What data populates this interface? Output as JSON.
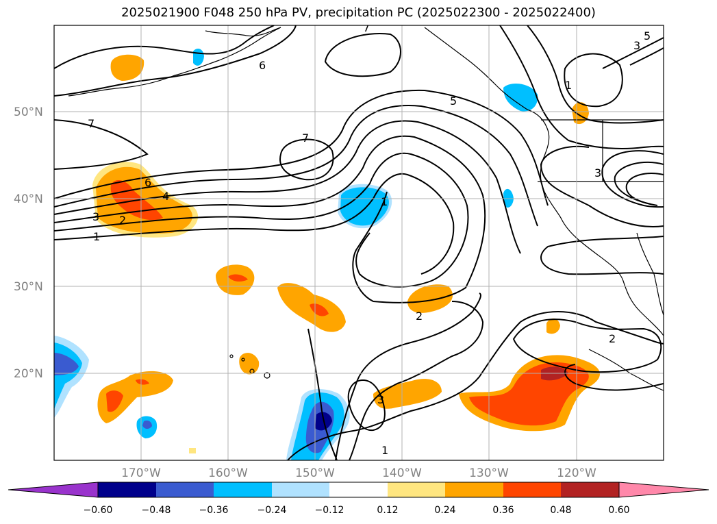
{
  "title": "2025021900 F048 250 hPa PV, precipitation PC (2025022300 - 2025022400)",
  "lat_labels": [
    "50°N",
    "40°N",
    "30°N",
    "20°N"
  ],
  "lon_labels": [
    "170°W",
    "160°W",
    "150°W",
    "140°W",
    "130°W",
    "120°W"
  ],
  "contour_labels": [
    "7",
    "6",
    "5",
    "7",
    "7",
    "6",
    "4",
    "3",
    "2",
    "1",
    "1",
    "2",
    "2",
    "3",
    "1",
    "3",
    "3",
    "5",
    "1"
  ],
  "colorbar": {
    "ticks": [
      "−0.60",
      "−0.48",
      "−0.36",
      "−0.24",
      "−0.12",
      "0.12",
      "0.24",
      "0.36",
      "0.48",
      "0.60"
    ],
    "colors": [
      "#9933cc",
      "#00008b",
      "#3a5bd0",
      "#00bfff",
      "#b0e2ff",
      "#ffffff",
      "#ffe680",
      "#ffa500",
      "#ff4500",
      "#b22222",
      "#ff88aa"
    ]
  },
  "colors": {
    "pos_low": "#ffe680",
    "pos_mid": "#ffa500",
    "pos_high": "#ff4500",
    "pos_top": "#b22222",
    "neg_low": "#b0e2ff",
    "neg_mid": "#00bfff",
    "neg_high": "#3a5bd0",
    "neg_top": "#00008b",
    "grid": "#b0b0b0"
  }
}
